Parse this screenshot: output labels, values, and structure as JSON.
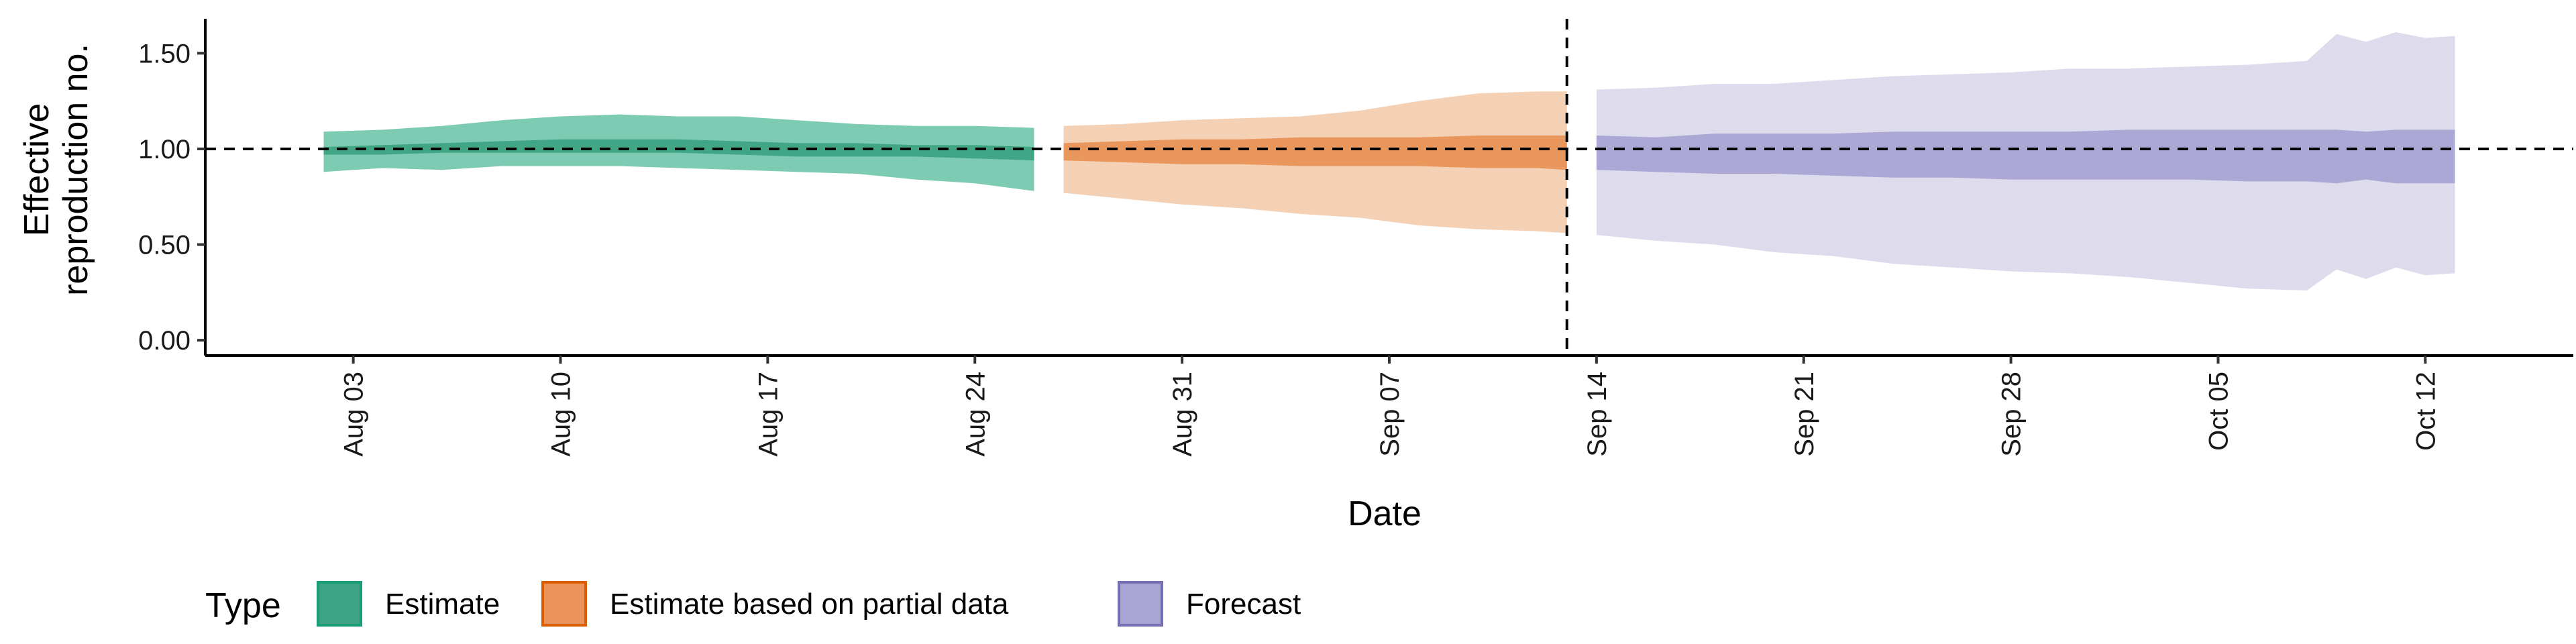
{
  "chart_data": {
    "type": "area",
    "xlabel": "Date",
    "ylabel": [
      "Effective",
      "reproduction no."
    ],
    "ylim": [
      -0.08,
      1.68
    ],
    "xlim": [
      "2020-07-29",
      "2020-10-17"
    ],
    "y_ticks": [
      {
        "value": 0.0,
        "label": "0.00"
      },
      {
        "value": 0.5,
        "label": "0.50"
      },
      {
        "value": 1.0,
        "label": "1.00"
      },
      {
        "value": 1.5,
        "label": "1.50"
      }
    ],
    "x_ticks": [
      {
        "date": "2020-08-03",
        "label": "Aug 03"
      },
      {
        "date": "2020-08-10",
        "label": "Aug 10"
      },
      {
        "date": "2020-08-17",
        "label": "Aug 17"
      },
      {
        "date": "2020-08-24",
        "label": "Aug 24"
      },
      {
        "date": "2020-08-31",
        "label": "Aug 31"
      },
      {
        "date": "2020-09-07",
        "label": "Sep 07"
      },
      {
        "date": "2020-09-14",
        "label": "Sep 14"
      },
      {
        "date": "2020-09-21",
        "label": "Sep 21"
      },
      {
        "date": "2020-09-28",
        "label": "Sep 28"
      },
      {
        "date": "2020-10-05",
        "label": "Oct 05"
      },
      {
        "date": "2020-10-12",
        "label": "Oct 12"
      }
    ],
    "reference_line_y": 1.0,
    "forecast_line_date": "2020-09-13",
    "grid": false,
    "legend": {
      "title": "Type",
      "position": "bottom"
    },
    "series": [
      {
        "name": "Estimate",
        "fill": "#66c2a5",
        "inner_fill": "#3ea383",
        "border": "#1b9e77",
        "dates": [
          "2020-08-02",
          "2020-08-04",
          "2020-08-06",
          "2020-08-08",
          "2020-08-10",
          "2020-08-12",
          "2020-08-14",
          "2020-08-16",
          "2020-08-18",
          "2020-08-20",
          "2020-08-22",
          "2020-08-24",
          "2020-08-26"
        ],
        "lower90": [
          0.88,
          0.9,
          0.89,
          0.91,
          0.91,
          0.91,
          0.9,
          0.89,
          0.88,
          0.87,
          0.84,
          0.82,
          0.78
        ],
        "upper90": [
          1.09,
          1.1,
          1.12,
          1.15,
          1.17,
          1.18,
          1.17,
          1.17,
          1.15,
          1.13,
          1.12,
          1.12,
          1.11
        ],
        "lower50": [
          0.97,
          0.97,
          0.98,
          0.98,
          0.98,
          0.98,
          0.98,
          0.97,
          0.96,
          0.96,
          0.96,
          0.95,
          0.94
        ],
        "upper50": [
          1.01,
          1.02,
          1.03,
          1.04,
          1.05,
          1.05,
          1.05,
          1.04,
          1.03,
          1.03,
          1.02,
          1.02,
          1.01
        ]
      },
      {
        "name": "Estimate based on partial data",
        "fill": "#f2c8a7",
        "inner_fill": "#e9935a",
        "border": "#d95f02",
        "dates": [
          "2020-08-27",
          "2020-08-29",
          "2020-08-31",
          "2020-09-02",
          "2020-09-04",
          "2020-09-06",
          "2020-09-08",
          "2020-09-10",
          "2020-09-12",
          "2020-09-13"
        ],
        "lower90": [
          0.77,
          0.74,
          0.71,
          0.69,
          0.66,
          0.64,
          0.6,
          0.58,
          0.57,
          0.56
        ],
        "upper90": [
          1.12,
          1.13,
          1.15,
          1.16,
          1.17,
          1.2,
          1.25,
          1.29,
          1.3,
          1.3
        ],
        "lower50": [
          0.94,
          0.93,
          0.92,
          0.92,
          0.91,
          0.91,
          0.91,
          0.9,
          0.9,
          0.89
        ],
        "upper50": [
          1.03,
          1.04,
          1.05,
          1.05,
          1.06,
          1.06,
          1.06,
          1.07,
          1.07,
          1.07
        ]
      },
      {
        "name": "Forecast",
        "fill": "#dcdaeb",
        "inner_fill": "#a8a4d4",
        "border": "#7570b3",
        "dates": [
          "2020-09-14",
          "2020-09-16",
          "2020-09-18",
          "2020-09-20",
          "2020-09-22",
          "2020-09-24",
          "2020-09-26",
          "2020-09-28",
          "2020-09-30",
          "2020-10-02",
          "2020-10-04",
          "2020-10-06",
          "2020-10-08",
          "2020-10-09",
          "2020-10-10",
          "2020-10-11",
          "2020-10-12",
          "2020-10-13"
        ],
        "lower90": [
          0.55,
          0.52,
          0.5,
          0.46,
          0.44,
          0.4,
          0.38,
          0.36,
          0.35,
          0.33,
          0.3,
          0.27,
          0.26,
          0.37,
          0.32,
          0.38,
          0.34,
          0.35
        ],
        "upper90": [
          1.31,
          1.32,
          1.34,
          1.34,
          1.36,
          1.38,
          1.39,
          1.4,
          1.42,
          1.42,
          1.43,
          1.44,
          1.46,
          1.6,
          1.56,
          1.61,
          1.58,
          1.59
        ],
        "lower50": [
          0.89,
          0.88,
          0.87,
          0.87,
          0.86,
          0.85,
          0.85,
          0.84,
          0.84,
          0.84,
          0.84,
          0.83,
          0.83,
          0.82,
          0.84,
          0.82,
          0.82,
          0.82
        ],
        "upper50": [
          1.07,
          1.06,
          1.08,
          1.08,
          1.08,
          1.09,
          1.09,
          1.09,
          1.09,
          1.1,
          1.1,
          1.1,
          1.1,
          1.1,
          1.09,
          1.1,
          1.1,
          1.1
        ]
      }
    ]
  }
}
